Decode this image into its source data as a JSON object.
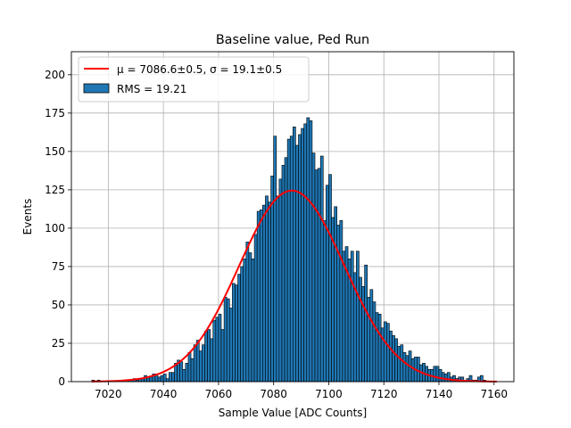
{
  "chart_data": {
    "type": "bar",
    "title": "Baseline value, Ped Run",
    "xlabel": "Sample Value [ADC Counts]",
    "ylabel": "Events",
    "xlim": [
      7006.6,
      7167.2
    ],
    "ylim": [
      0,
      215
    ],
    "xticks": [
      7020,
      7040,
      7060,
      7080,
      7100,
      7120,
      7140,
      7160
    ],
    "yticks": [
      0,
      25,
      50,
      75,
      100,
      125,
      150,
      175,
      200
    ],
    "grid": true,
    "legend_position": "upper-left",
    "histogram": {
      "name": "RMS = 19.21",
      "color": "#1f77b4",
      "edgecolor": "#000000",
      "bin_start": 7014,
      "bin_width": 1,
      "counts": [
        1,
        0,
        1,
        0,
        0,
        0,
        0,
        0,
        0,
        0,
        0,
        0,
        0,
        1,
        1,
        2,
        1,
        2,
        2,
        4,
        3,
        3,
        5,
        5,
        3,
        4,
        5,
        2,
        6,
        6,
        12,
        14,
        13,
        8,
        12,
        19,
        15,
        24,
        27,
        20,
        24,
        33,
        34,
        28,
        40,
        42,
        44,
        34,
        55,
        54,
        48,
        64,
        63,
        70,
        75,
        80,
        91,
        84,
        80,
        96,
        111,
        112,
        115,
        121,
        117,
        134,
        160,
        121,
        132,
        141,
        146,
        158,
        160,
        166,
        154,
        161,
        165,
        168,
        172,
        170,
        149,
        138,
        139,
        147,
        105,
        128,
        135,
        107,
        114,
        102,
        105,
        85,
        88,
        80,
        85,
        71,
        85,
        68,
        62,
        76,
        55,
        60,
        52,
        45,
        44,
        35,
        39,
        38,
        33,
        30,
        28,
        23,
        24,
        19,
        17,
        20,
        15,
        16,
        16,
        11,
        12,
        10,
        8,
        8,
        10,
        10,
        8,
        6,
        5,
        6,
        3,
        4,
        2,
        3,
        3,
        1,
        2,
        4,
        1,
        1,
        3,
        4,
        1,
        0,
        0,
        0,
        0
      ]
    },
    "fit": {
      "type": "gaussian",
      "color": "#ff0000",
      "legend_label": "μ = 7086.6±0.5, σ = 19.1±0.5",
      "mu": 7086.6,
      "sigma": 19.1,
      "amplitude": 124.5,
      "x_range": [
        7014,
        7161
      ]
    }
  }
}
